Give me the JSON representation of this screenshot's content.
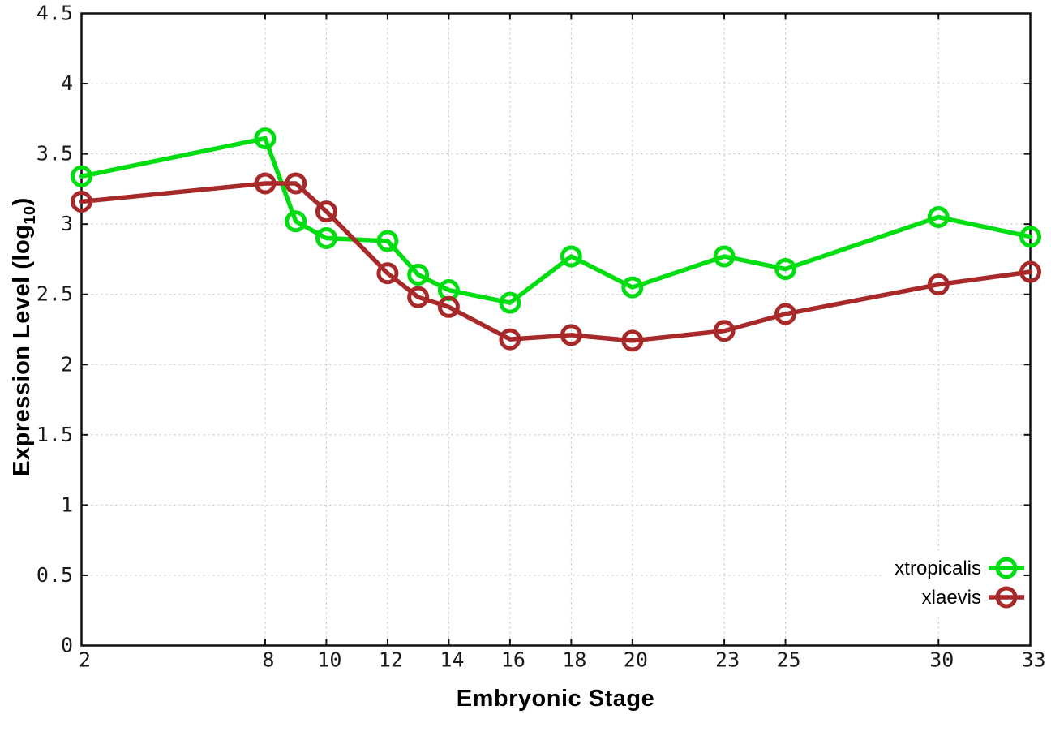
{
  "page": {
    "background": "#ffffff"
  },
  "chart_data": {
    "type": "line",
    "title": "",
    "xlabel": "Embryonic Stage",
    "ylabel": "Expression Level (log10)",
    "ylabel_parts": {
      "prefix": "Expression Level (log",
      "subscript": "10",
      "suffix": ")"
    },
    "xlim": [
      2,
      33
    ],
    "ylim": [
      0,
      4.5
    ],
    "grid": true,
    "x_tick_values": [
      2,
      8,
      10,
      12,
      14,
      16,
      18,
      20,
      23,
      25,
      30,
      33
    ],
    "x_tick_labels": [
      "2",
      "8",
      "10",
      "12",
      "14",
      "16",
      "18",
      "20",
      "23",
      "25",
      "30",
      "33"
    ],
    "y_tick_values": [
      0,
      0.5,
      1,
      1.5,
      2,
      2.5,
      3,
      3.5,
      4,
      4.5
    ],
    "y_tick_labels": [
      "0",
      "0.5",
      "1",
      "1.5",
      "2",
      "2.5",
      "3",
      "3.5",
      "4",
      "4.5"
    ],
    "x": [
      2,
      8,
      9,
      10,
      12,
      13,
      14,
      16,
      18,
      20,
      23,
      25,
      30,
      33
    ],
    "series": [
      {
        "name": "xtropicalis",
        "color": "#00dd11",
        "marker": "open-circle",
        "values": [
          3.34,
          3.61,
          3.02,
          2.9,
          2.88,
          2.64,
          2.53,
          2.44,
          2.77,
          2.55,
          2.77,
          2.68,
          3.05,
          2.91
        ]
      },
      {
        "name": "xlaevis",
        "color": "#a82929",
        "marker": "open-circle",
        "values": [
          3.16,
          3.29,
          3.29,
          3.09,
          2.65,
          2.48,
          2.41,
          2.18,
          2.21,
          2.17,
          2.24,
          2.36,
          2.57,
          2.66
        ]
      }
    ],
    "legend": {
      "position": "inside-bottom-right",
      "entries": [
        "xtropicalis",
        "xlaevis"
      ]
    },
    "colors": {
      "grid": "#bbbbbb",
      "axis": "#111111",
      "tick_text": "#1a1a1a",
      "xtropicalis": "#00dd11",
      "xlaevis": "#a82929"
    }
  }
}
